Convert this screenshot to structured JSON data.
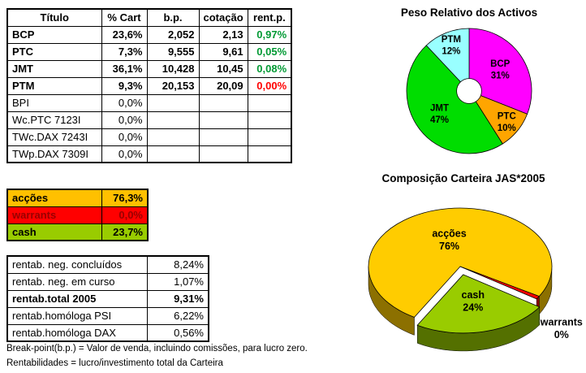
{
  "positions_table": {
    "headers": [
      "Título",
      "% Cart",
      "b.p.",
      "cotação",
      "rent.p."
    ],
    "rows": [
      {
        "titulo": "BCP",
        "cart": "23,6%",
        "bp": "2,052",
        "cotacao": "2,13",
        "rentp": "0,97%",
        "rentp_color": "#009933",
        "bold": true
      },
      {
        "titulo": "PTC",
        "cart": "7,3%",
        "bp": "9,555",
        "cotacao": "9,61",
        "rentp": "0,05%",
        "rentp_color": "#009933",
        "bold": true
      },
      {
        "titulo": "JMT",
        "cart": "36,1%",
        "bp": "10,428",
        "cotacao": "10,45",
        "rentp": "0,08%",
        "rentp_color": "#009933",
        "bold": true
      },
      {
        "titulo": "PTM",
        "cart": "9,3%",
        "bp": "20,153",
        "cotacao": "20,09",
        "rentp": "0,00%",
        "rentp_color": "#FF0000",
        "bold": true
      },
      {
        "titulo": "BPI",
        "cart": "0,0%",
        "bp": "",
        "cotacao": "",
        "rentp": "",
        "rentp_color": "",
        "bold": false
      },
      {
        "titulo": "Wc.PTC 7123I",
        "cart": "0,0%",
        "bp": "",
        "cotacao": "",
        "rentp": "",
        "rentp_color": "",
        "bold": false
      },
      {
        "titulo": "TWc.DAX 7243I",
        "cart": "0,0%",
        "bp": "",
        "cotacao": "",
        "rentp": "",
        "rentp_color": "",
        "bold": false
      },
      {
        "titulo": "TWp.DAX 7309I",
        "cart": "0,0%",
        "bp": "",
        "cotacao": "",
        "rentp": "",
        "rentp_color": "",
        "bold": false
      }
    ]
  },
  "allocation_table": {
    "rows": [
      {
        "label": "acções",
        "value": "76,3%",
        "bg": "#FFC000",
        "fg": "#000000"
      },
      {
        "label": "warrants",
        "value": "0,0%",
        "bg": "#FF0000",
        "fg": "#990000"
      },
      {
        "label": "cash",
        "value": "23,7%",
        "bg": "#99CC00",
        "fg": "#000000"
      }
    ]
  },
  "returns_table": {
    "rows": [
      {
        "label": "rentab. neg. concluídos",
        "value": "8,24%",
        "bold": false
      },
      {
        "label": "rentab. neg. em curso",
        "value": "1,07%",
        "bold": false
      },
      {
        "label": "rentab.total 2005",
        "value": "9,31%",
        "bold": true
      },
      {
        "label": "rentab.homóloga PSI",
        "value": "6,22%",
        "bold": false
      },
      {
        "label": "rentab.homóloga DAX",
        "value": "0,56%",
        "bold": false
      }
    ]
  },
  "notes": [
    "Break-point(b.p.) = Valor de venda, incluindo comissões, para lucro zero.",
    "Rentabilidades = lucro/investimento total da Carteira"
  ],
  "chart_data": [
    {
      "type": "pie",
      "title": "Peso Relativo dos Activos",
      "labels": [
        "BCP",
        "PTC",
        "JMT",
        "PTM"
      ],
      "values": [
        31,
        10,
        47,
        12
      ],
      "colors": [
        "#FF00FF",
        "#FFA500",
        "#00DD00",
        "#99FFFF"
      ],
      "donut_hole": 0.2,
      "start_angle": 0,
      "legend": "none"
    },
    {
      "type": "pie",
      "title": "Composição Carteira JAS*2005",
      "labels": [
        "acções",
        "warrants",
        "cash"
      ],
      "values": [
        76,
        0,
        24
      ],
      "colors": [
        "#FFCC00",
        "#FF0000",
        "#99CC00"
      ],
      "effect_3d": true,
      "start_angle": 210,
      "exploded": [
        false,
        false,
        true
      ],
      "legend": "none"
    }
  ]
}
